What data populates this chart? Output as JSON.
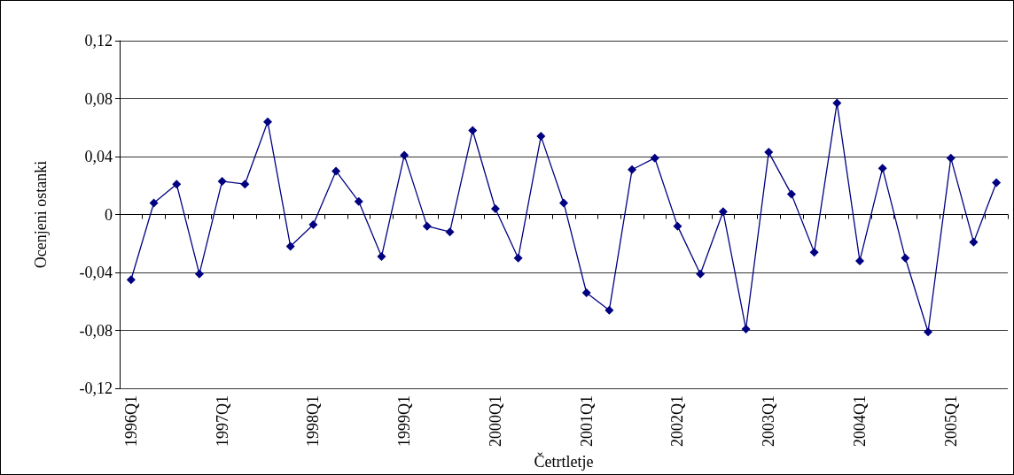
{
  "chart_data": {
    "type": "line",
    "xlabel": "Četrtletje",
    "ylabel": "Ocenjeni ostanki",
    "categories": [
      "1996Q1",
      null,
      null,
      null,
      "1997Q1",
      null,
      null,
      null,
      "1998Q1",
      null,
      null,
      null,
      "1999Q1",
      null,
      null,
      null,
      "2000Q1",
      null,
      null,
      null,
      "2001Q1",
      null,
      null,
      null,
      "2002Q1",
      null,
      null,
      null,
      "2003Q1",
      null,
      null,
      null,
      "2004Q1",
      null,
      null,
      null,
      "2005Q1",
      null,
      null
    ],
    "series": [
      {
        "color": "#000080",
        "values": [
          -0.045,
          0.008,
          0.021,
          -0.041,
          0.023,
          0.021,
          0.064,
          -0.022,
          -0.007,
          0.03,
          0.009,
          -0.029,
          0.041,
          -0.008,
          -0.012,
          0.058,
          0.004,
          -0.03,
          0.054,
          0.008,
          -0.054,
          -0.066,
          0.031,
          0.039,
          -0.008,
          -0.041,
          0.002,
          -0.079,
          0.043,
          0.014,
          -0.026,
          0.077,
          -0.032,
          0.032,
          -0.03,
          -0.081,
          0.039,
          -0.019,
          0.022
        ]
      }
    ],
    "ylim": [
      -0.12,
      0.12
    ],
    "yticks": [
      {
        "value": -0.12,
        "label": "-0,12"
      },
      {
        "value": -0.08,
        "label": "-0,08"
      },
      {
        "value": -0.04,
        "label": "-0,04"
      },
      0,
      {
        "value": 0.04,
        "label": "0,04"
      },
      {
        "value": 0.08,
        "label": "0,08"
      },
      {
        "value": 0.12,
        "label": "0,12"
      }
    ],
    "grid": "y",
    "marker": "diamond",
    "line_style": "solid"
  }
}
